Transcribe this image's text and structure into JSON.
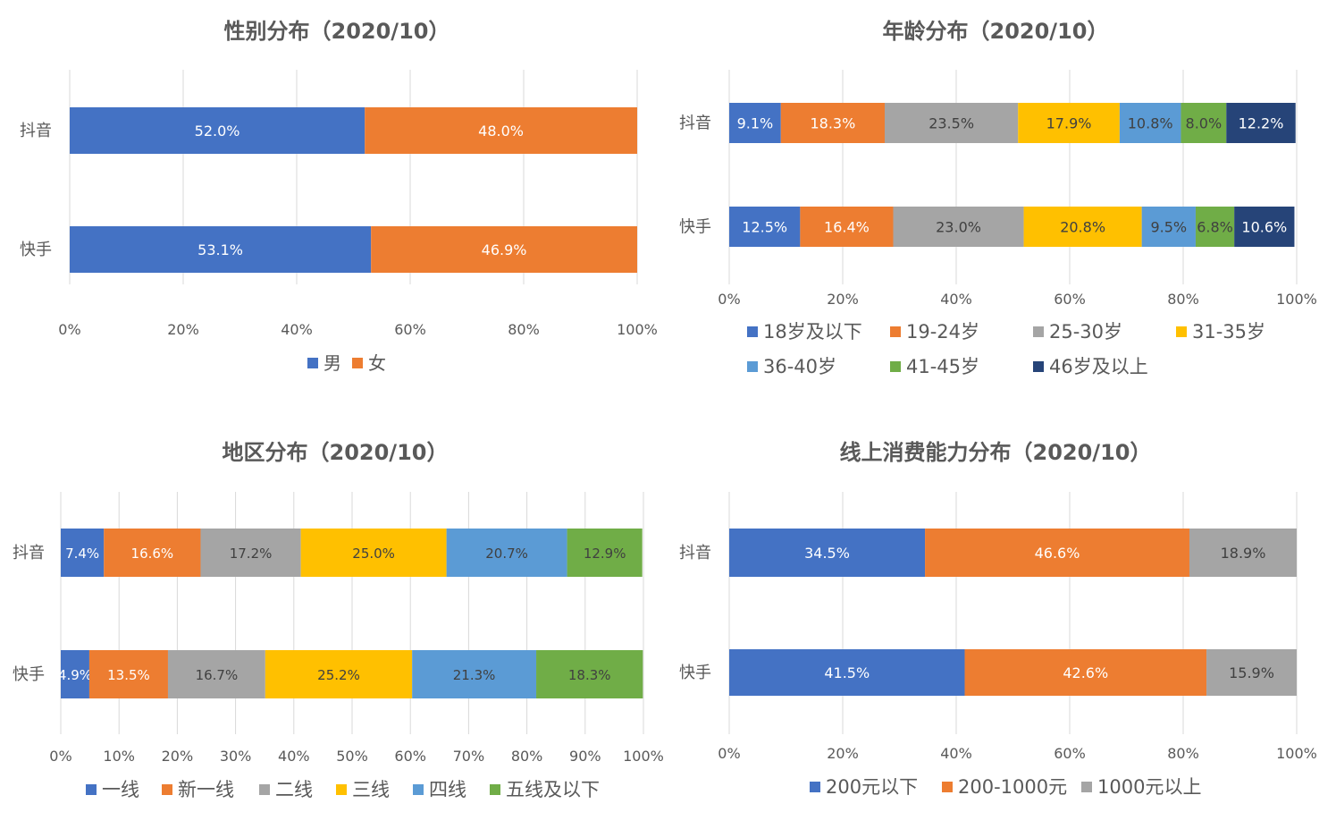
{
  "colors": {
    "blue": "#4472C4",
    "orange": "#ED7D31",
    "gray": "#A5A5A5",
    "gold": "#FFC000",
    "lightblue": "#5B9BD5",
    "green": "#70AD47",
    "navy": "#264478",
    "grid": "#D9D9D9",
    "text": "#595959",
    "title": "#595959"
  },
  "chart_data": [
    {
      "id": "gender",
      "type": "bar",
      "stacked": "percent",
      "orientation": "horizontal",
      "title": "性别分布（2020/10）",
      "categories": [
        "抖音",
        "快手"
      ],
      "x_ticks": [
        "0%",
        "20%",
        "40%",
        "60%",
        "80%",
        "100%"
      ],
      "xlim": [
        0,
        100
      ],
      "grid": true,
      "legend_position": "bottom",
      "series": [
        {
          "name": "男",
          "color": "#4472C4",
          "values": [
            52.0,
            53.1
          ],
          "labels": [
            "52.0%",
            "53.1%"
          ]
        },
        {
          "name": "女",
          "color": "#ED7D31",
          "values": [
            48.0,
            46.9
          ],
          "labels": [
            "48.0%",
            "46.9%"
          ]
        }
      ]
    },
    {
      "id": "age",
      "type": "bar",
      "stacked": "percent",
      "orientation": "horizontal",
      "title": "年龄分布（2020/10）",
      "categories": [
        "抖音",
        "快手"
      ],
      "x_ticks": [
        "0%",
        "20%",
        "40%",
        "60%",
        "80%",
        "100%"
      ],
      "xlim": [
        0,
        100
      ],
      "grid": true,
      "legend_position": "bottom",
      "series": [
        {
          "name": "18岁及以下",
          "color": "#4472C4",
          "values": [
            9.1,
            12.5
          ],
          "labels": [
            "9.1%",
            "12.5%"
          ]
        },
        {
          "name": "19-24岁",
          "color": "#ED7D31",
          "values": [
            18.3,
            16.4
          ],
          "labels": [
            "18.3%",
            "16.4%"
          ]
        },
        {
          "name": "25-30岁",
          "color": "#A5A5A5",
          "values": [
            23.5,
            23.0
          ],
          "labels": [
            "23.5%",
            "23.0%"
          ]
        },
        {
          "name": "31-35岁",
          "color": "#FFC000",
          "values": [
            17.9,
            20.8
          ],
          "labels": [
            "17.9%",
            "20.8%"
          ]
        },
        {
          "name": "36-40岁",
          "color": "#5B9BD5",
          "values": [
            10.8,
            9.5
          ],
          "labels": [
            "10.8%",
            "9.5%"
          ]
        },
        {
          "name": "41-45岁",
          "color": "#70AD47",
          "values": [
            8.0,
            6.8
          ],
          "labels": [
            "8.0%",
            "6.8%"
          ]
        },
        {
          "name": "46岁及以上",
          "color": "#264478",
          "values": [
            12.2,
            10.6
          ],
          "labels": [
            "12.2%",
            "10.6%"
          ]
        }
      ]
    },
    {
      "id": "region",
      "type": "bar",
      "stacked": "percent",
      "orientation": "horizontal",
      "title": "地区分布（2020/10）",
      "categories": [
        "抖音",
        "快手"
      ],
      "x_ticks": [
        "0%",
        "10%",
        "20%",
        "30%",
        "40%",
        "50%",
        "60%",
        "70%",
        "80%",
        "90%",
        "100%"
      ],
      "xlim": [
        0,
        100
      ],
      "grid": true,
      "legend_position": "bottom",
      "series": [
        {
          "name": "一线",
          "color": "#4472C4",
          "values": [
            7.4,
            4.9
          ],
          "labels": [
            "7.4%",
            "4.9%"
          ]
        },
        {
          "name": "新一线",
          "color": "#ED7D31",
          "values": [
            16.6,
            13.5
          ],
          "labels": [
            "16.6%",
            "13.5%"
          ]
        },
        {
          "name": "二线",
          "color": "#A5A5A5",
          "values": [
            17.2,
            16.7
          ],
          "labels": [
            "17.2%",
            "16.7%"
          ]
        },
        {
          "name": "三线",
          "color": "#FFC000",
          "values": [
            25.0,
            25.2
          ],
          "labels": [
            "25.0%",
            "25.2%"
          ]
        },
        {
          "name": "四线",
          "color": "#5B9BD5",
          "values": [
            20.7,
            21.3
          ],
          "labels": [
            "20.7%",
            "21.3%"
          ]
        },
        {
          "name": "五线及以下",
          "color": "#70AD47",
          "values": [
            12.9,
            18.3
          ],
          "labels": [
            "12.9%",
            "18.3%"
          ]
        }
      ]
    },
    {
      "id": "spending",
      "type": "bar",
      "stacked": "percent",
      "orientation": "horizontal",
      "title": "线上消费能力分布（2020/10）",
      "categories": [
        "抖音",
        "快手"
      ],
      "x_ticks": [
        "0%",
        "20%",
        "40%",
        "60%",
        "80%",
        "100%"
      ],
      "xlim": [
        0,
        100
      ],
      "grid": true,
      "legend_position": "bottom",
      "series": [
        {
          "name": "200元以下",
          "color": "#4472C4",
          "values": [
            34.5,
            41.5
          ],
          "labels": [
            "34.5%",
            "41.5%"
          ]
        },
        {
          "name": "200-1000元",
          "color": "#ED7D31",
          "values": [
            46.6,
            42.6
          ],
          "labels": [
            "46.6%",
            "42.6%"
          ]
        },
        {
          "name": "1000元以上",
          "color": "#A5A5A5",
          "values": [
            18.9,
            15.9
          ],
          "labels": [
            "18.9%",
            "15.9%"
          ]
        }
      ]
    }
  ]
}
